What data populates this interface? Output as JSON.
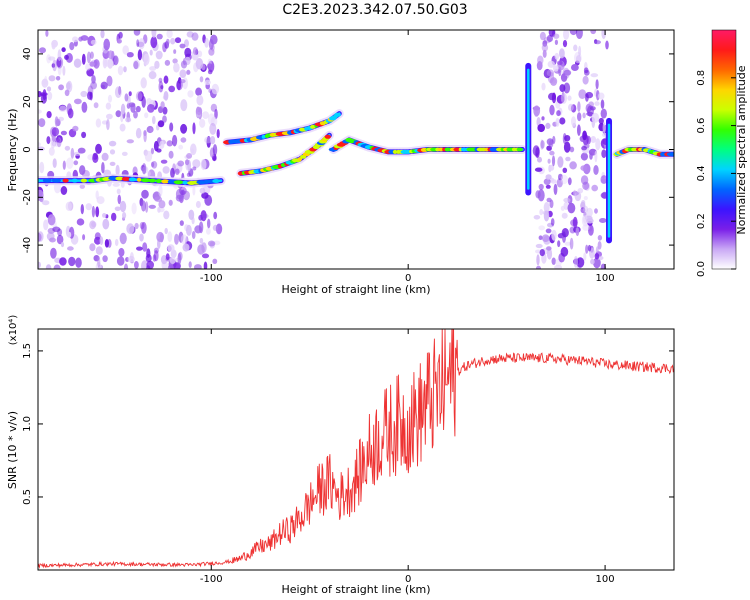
{
  "figure": {
    "title": "C2E3.2023.342.07.50.G03"
  },
  "chart_data": [
    {
      "type": "heatmap",
      "xlabel": "Height of straight line (km)",
      "ylabel": "Frequency (Hz)",
      "xlim": [
        -188,
        135
      ],
      "ylim": [
        -50,
        50
      ],
      "x_ticks": [
        -100,
        0,
        100
      ],
      "x_tick_labels": [
        "-100",
        "0",
        "100"
      ],
      "y_ticks": [
        -40,
        -20,
        0,
        20,
        40
      ],
      "y_tick_labels": [
        "-40",
        "-20",
        "0",
        "20",
        "40"
      ],
      "colorbar": {
        "label": "Normalized spectral amplitude",
        "range": [
          0,
          1
        ],
        "ticks": [
          0.0,
          0.2,
          0.4,
          0.6,
          0.8
        ],
        "tick_labels": [
          "0.0",
          "0.2",
          "0.4",
          "0.6",
          "0.8"
        ],
        "colormap": [
          "#ffffff",
          "#c9a8f5",
          "#7a1fe8",
          "#3b14ff",
          "#0066ff",
          "#00d4ff",
          "#00ff80",
          "#33ff00",
          "#ccff00",
          "#ffd500",
          "#ff6600",
          "#ff1a1a",
          "#ff1a66"
        ]
      },
      "noise_regions_x": [
        [
          -188,
          -96
        ],
        [
          65,
          101
        ]
      ],
      "tracks": [
        {
          "x": [
            -188,
            -160,
            -150,
            -130,
            -110,
            -95
          ],
          "y": [
            -13,
            -13,
            -12,
            -13,
            -14,
            -13
          ]
        },
        {
          "x": [
            -92,
            -80,
            -70,
            -60,
            -50,
            -40,
            -35
          ],
          "y": [
            3,
            4,
            6,
            7,
            9,
            12,
            15
          ]
        },
        {
          "x": [
            -85,
            -75,
            -65,
            -55,
            -45,
            -40
          ],
          "y": [
            -10,
            -9,
            -7,
            -4,
            2,
            6
          ]
        },
        {
          "x": [
            -38,
            -30,
            -20,
            -10,
            0,
            10,
            20,
            30,
            40,
            50,
            58
          ],
          "y": [
            0,
            4,
            1,
            -1,
            -1,
            0,
            0,
            0,
            0,
            0,
            0
          ]
        },
        {
          "x": [
            106,
            112,
            120,
            128,
            135
          ],
          "y": [
            -2,
            0,
            0,
            -2,
            -2
          ]
        }
      ],
      "vertical_features": [
        {
          "x": 61,
          "y_range": [
            -18,
            35
          ]
        },
        {
          "x": 102,
          "y_range": [
            -38,
            12
          ]
        }
      ]
    },
    {
      "type": "line",
      "xlabel": "Height of straight line (km)",
      "ylabel": "SNR (10 * v/v)",
      "y_scale_label": "(x10⁴)",
      "xlim": [
        -188,
        135
      ],
      "ylim": [
        0,
        16500
      ],
      "x_ticks": [
        -100,
        0,
        100
      ],
      "x_tick_labels": [
        "-100",
        "0",
        "100"
      ],
      "y_ticks": [
        5000,
        10000,
        15000
      ],
      "y_tick_labels": [
        "0.5",
        "1.0",
        "1.5"
      ],
      "color": "#ee3333",
      "series": [
        {
          "x": [
            -188,
            -170,
            -150,
            -130,
            -110,
            -95,
            -90,
            -85,
            -80,
            -75,
            -70,
            -65,
            -60,
            -55,
            -50,
            -45,
            -40,
            -35,
            -30,
            -25,
            -20,
            -15,
            -10,
            -5,
            0,
            5,
            10,
            15,
            18,
            20,
            25,
            30,
            40,
            50,
            60,
            70,
            80,
            90,
            100,
            110,
            120,
            135
          ],
          "y": [
            300,
            350,
            420,
            380,
            350,
            500,
            600,
            800,
            1200,
            1600,
            1800,
            2500,
            2800,
            3500,
            4500,
            5500,
            6000,
            5000,
            5500,
            6500,
            8000,
            9000,
            9500,
            10000,
            10000,
            10500,
            11500,
            12000,
            12500,
            13000,
            13600,
            14000,
            14400,
            14500,
            14500,
            14500,
            14400,
            14300,
            14100,
            14000,
            13900,
            13800
          ]
        }
      ]
    }
  ]
}
